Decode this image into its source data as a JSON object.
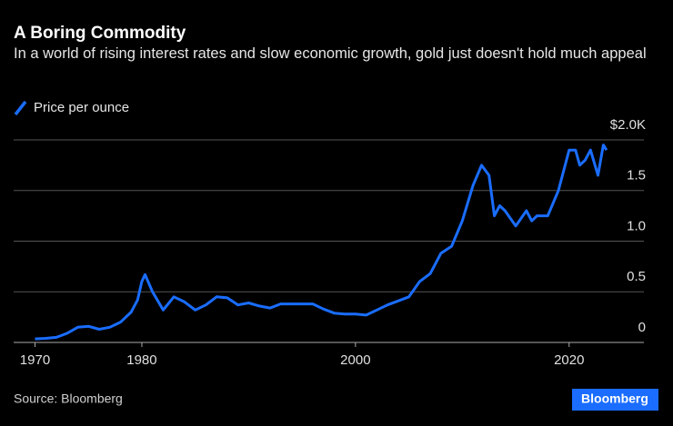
{
  "chart_data": {
    "type": "line",
    "title": "A Boring Commodity",
    "subtitle": "In a world of rising interest rates and slow economic growth, gold just doesn't hold much appeal",
    "source": "Source: Bloomberg",
    "brand": "Bloomberg",
    "series": [
      {
        "name": "Price per ounce",
        "color": "#1a6dff",
        "x": [
          1970,
          1971,
          1972,
          1973,
          1974,
          1975,
          1976,
          1977,
          1978,
          1979,
          1979.6,
          1980,
          1980.3,
          1981,
          1982,
          1983,
          1984,
          1985,
          1986,
          1987,
          1988,
          1989,
          1990,
          1991,
          1992,
          1993,
          1994,
          1995,
          1996,
          1997,
          1998,
          1999,
          2000,
          2001,
          2002,
          2003,
          2004,
          2005,
          2006,
          2007,
          2008,
          2009,
          2010,
          2011,
          2011.8,
          2012.5,
          2013,
          2013.5,
          2014,
          2015,
          2016,
          2016.5,
          2017,
          2018,
          2019,
          2020,
          2020.6,
          2021,
          2021.5,
          2022,
          2022.7,
          2023.2,
          2023.5
        ],
        "values": [
          0.035,
          0.04,
          0.05,
          0.09,
          0.15,
          0.16,
          0.13,
          0.15,
          0.2,
          0.3,
          0.42,
          0.6,
          0.67,
          0.5,
          0.32,
          0.45,
          0.4,
          0.32,
          0.37,
          0.45,
          0.44,
          0.37,
          0.39,
          0.36,
          0.34,
          0.38,
          0.38,
          0.38,
          0.38,
          0.33,
          0.29,
          0.28,
          0.28,
          0.27,
          0.32,
          0.37,
          0.41,
          0.45,
          0.6,
          0.68,
          0.88,
          0.95,
          1.2,
          1.55,
          1.75,
          1.65,
          1.25,
          1.35,
          1.3,
          1.15,
          1.3,
          1.2,
          1.25,
          1.25,
          1.5,
          1.9,
          1.9,
          1.75,
          1.8,
          1.9,
          1.65,
          1.95,
          1.9
        ]
      }
    ],
    "xlim": [
      1968,
      2027
    ],
    "xticks": [
      1970,
      1980,
      2000,
      2020
    ],
    "ylim": [
      0,
      2
    ],
    "yticks": [
      0,
      0.5,
      {
        "value": 1,
        "label": "1.0"
      },
      1.5,
      {
        "value": 2,
        "label": "$2.0K"
      }
    ],
    "grid": true
  }
}
